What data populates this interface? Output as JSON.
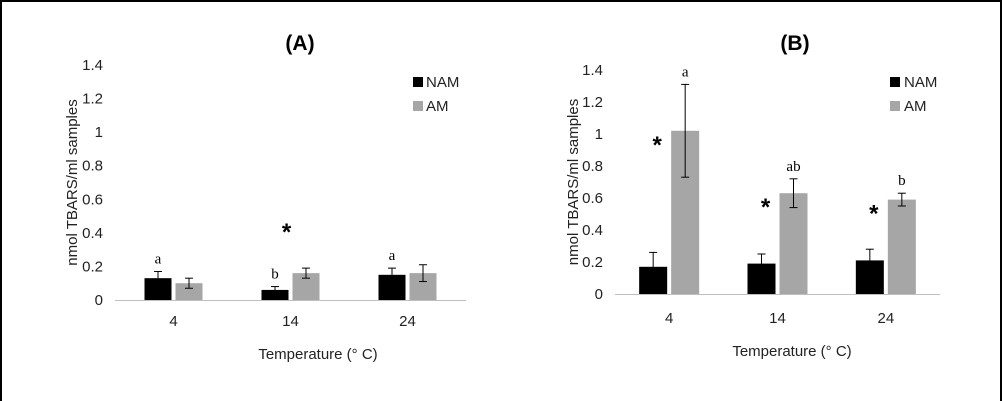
{
  "chart_data": [
    {
      "type": "bar",
      "title": "(A)",
      "xlabel": "Temperature (° C)",
      "ylabel": "nmol TBARS/ml samples",
      "ylim": [
        0,
        1.4
      ],
      "yticks": [
        "0",
        "0.2",
        "0.4",
        "0.6",
        "0.8",
        "1",
        "1.2",
        "1.4"
      ],
      "categories": [
        "4",
        "14",
        "24"
      ],
      "legend_position": "top-right",
      "series": [
        {
          "name": "NAM",
          "color": "#000000",
          "values": [
            0.13,
            0.06,
            0.15
          ],
          "errors": [
            0.04,
            0.02,
            0.04
          ],
          "labels": [
            "a",
            "b",
            "a"
          ]
        },
        {
          "name": "AM",
          "color": "#a6a6a6",
          "values": [
            0.1,
            0.16,
            0.16
          ],
          "errors": [
            0.03,
            0.03,
            0.05
          ],
          "labels": [
            "",
            "",
            ""
          ]
        }
      ],
      "stars": [
        "",
        "*",
        ""
      ]
    },
    {
      "type": "bar",
      "title": "(B)",
      "xlabel": "Temperature (° C)",
      "ylabel": "nmol TBARS/ml samples",
      "ylim": [
        0,
        1.4
      ],
      "yticks": [
        "0",
        "0.2",
        "0.4",
        "0.6",
        "0.8",
        "1",
        "1.2",
        "1.4"
      ],
      "categories": [
        "4",
        "14",
        "24"
      ],
      "legend_position": "top-right",
      "series": [
        {
          "name": "NAM",
          "color": "#000000",
          "values": [
            0.17,
            0.19,
            0.21
          ],
          "errors": [
            0.09,
            0.06,
            0.07
          ],
          "labels": [
            "",
            "",
            ""
          ]
        },
        {
          "name": "AM",
          "color": "#a6a6a6",
          "values": [
            1.02,
            0.63,
            0.59
          ],
          "errors": [
            0.29,
            0.09,
            0.04
          ],
          "labels": [
            "a",
            "ab",
            "b"
          ]
        }
      ],
      "stars": [
        "*",
        "*",
        "*"
      ]
    }
  ]
}
